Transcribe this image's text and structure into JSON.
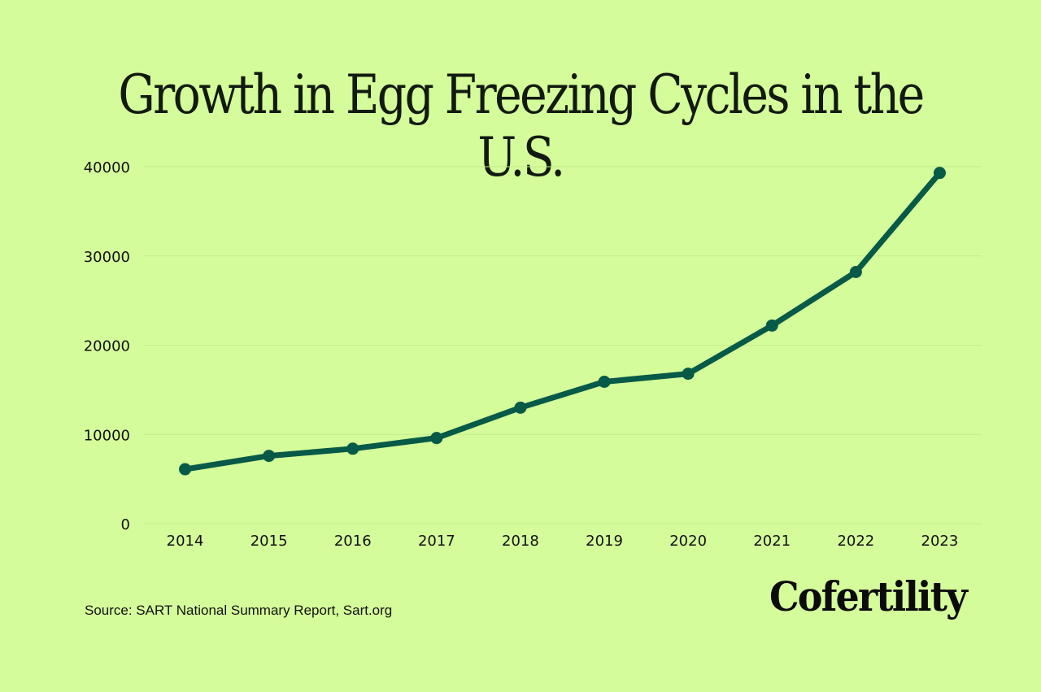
{
  "chart_data": {
    "type": "line",
    "title": "Growth in Egg Freezing Cycles in the U.S.",
    "xlabel": "",
    "ylabel": "",
    "categories": [
      "2014",
      "2015",
      "2016",
      "2017",
      "2018",
      "2019",
      "2020",
      "2021",
      "2022",
      "2023"
    ],
    "values": [
      6100,
      7600,
      8400,
      9600,
      13000,
      15900,
      16800,
      22200,
      28200,
      39300
    ],
    "ylim": [
      0,
      40000
    ],
    "yticks": [
      0,
      10000,
      20000,
      30000,
      40000
    ],
    "grid": true,
    "legend": "none",
    "line_color": "#065a47",
    "background": "#d5fc9a"
  },
  "source": "Source: SART National Summary Report, Sart.org",
  "logo": "Cofertility"
}
